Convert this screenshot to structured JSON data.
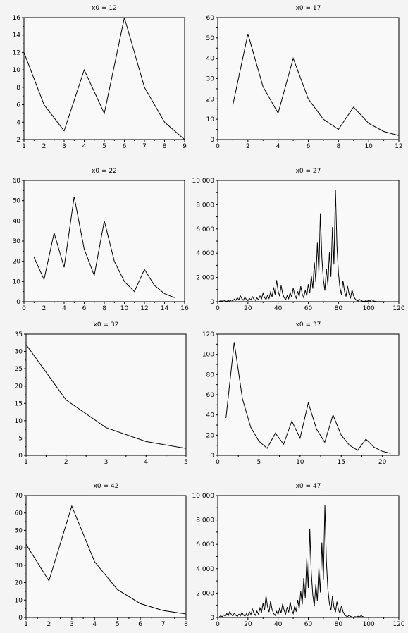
{
  "chart_data": [
    {
      "type": "line",
      "title": "x0 = 12",
      "xlim": [
        1,
        9
      ],
      "ylim": [
        2,
        16
      ],
      "xticks": [
        1,
        2,
        3,
        4,
        5,
        6,
        7,
        8,
        9
      ],
      "yticks": [
        2,
        4,
        6,
        8,
        10,
        12,
        14,
        16
      ],
      "x": [
        1,
        2,
        3,
        4,
        5,
        6,
        7,
        8,
        9
      ],
      "y": [
        12,
        6,
        3,
        10,
        5,
        16,
        8,
        4,
        2
      ]
    },
    {
      "type": "line",
      "title": "x0 = 17",
      "xlim": [
        0,
        12
      ],
      "ylim": [
        0,
        60
      ],
      "xticks": [
        0,
        2,
        4,
        6,
        8,
        10,
        12
      ],
      "yticks": [
        0,
        10,
        20,
        30,
        40,
        50,
        60
      ],
      "x": [
        1,
        2,
        3,
        4,
        5,
        6,
        7,
        8,
        9,
        10,
        11,
        12
      ],
      "y": [
        17,
        52,
        26,
        13,
        40,
        20,
        10,
        5,
        16,
        8,
        4,
        2
      ]
    },
    {
      "type": "line",
      "title": "x0 = 22",
      "xlim": [
        0,
        16
      ],
      "ylim": [
        0,
        60
      ],
      "xticks": [
        0,
        2,
        4,
        6,
        8,
        10,
        12,
        14,
        16
      ],
      "yticks": [
        0,
        10,
        20,
        30,
        40,
        50,
        60
      ],
      "x": [
        1,
        2,
        3,
        4,
        5,
        6,
        7,
        8,
        9,
        10,
        11,
        12,
        13,
        14,
        15
      ],
      "y": [
        22,
        11,
        34,
        17,
        52,
        26,
        13,
        40,
        20,
        10,
        5,
        16,
        8,
        4,
        2
      ]
    },
    {
      "type": "line",
      "title": "x0 = 27",
      "xlim": [
        0,
        120
      ],
      "ylim": [
        0,
        10000
      ],
      "xticks": [
        0,
        20,
        40,
        60,
        80,
        100,
        120
      ],
      "yticks": [
        0,
        2000,
        4000,
        6000,
        8000,
        10000
      ],
      "ytick_labels": [
        "0",
        "2 000",
        "4 000",
        "6 000",
        "8 000",
        "10 000"
      ],
      "x": [
        1,
        2,
        3,
        4,
        5,
        6,
        7,
        8,
        9,
        10,
        11,
        12,
        13,
        14,
        15,
        16,
        17,
        18,
        19,
        20,
        21,
        22,
        23,
        24,
        25,
        26,
        27,
        28,
        29,
        30,
        31,
        32,
        33,
        34,
        35,
        36,
        37,
        38,
        39,
        40,
        41,
        42,
        43,
        44,
        45,
        46,
        47,
        48,
        49,
        50,
        51,
        52,
        53,
        54,
        55,
        56,
        57,
        58,
        59,
        60,
        61,
        62,
        63,
        64,
        65,
        66,
        67,
        68,
        69,
        70,
        71,
        72,
        73,
        74,
        75,
        76,
        77,
        78,
        79,
        80,
        81,
        82,
        83,
        84,
        85,
        86,
        87,
        88,
        89,
        90,
        91,
        92,
        93,
        94,
        95,
        96,
        97,
        98,
        99,
        100,
        101,
        102,
        103,
        104,
        105,
        106,
        107,
        108,
        109,
        110,
        111,
        112
      ],
      "y": [
        27,
        82,
        41,
        124,
        62,
        31,
        94,
        47,
        142,
        71,
        214,
        107,
        322,
        161,
        484,
        242,
        121,
        364,
        182,
        91,
        274,
        137,
        412,
        206,
        103,
        310,
        155,
        466,
        233,
        700,
        350,
        175,
        526,
        263,
        790,
        395,
        1186,
        593,
        1780,
        890,
        445,
        1336,
        668,
        334,
        167,
        502,
        251,
        754,
        377,
        1132,
        566,
        283,
        850,
        425,
        1276,
        638,
        319,
        958,
        479,
        1438,
        719,
        2158,
        1079,
        3238,
        1619,
        4858,
        2429,
        7288,
        3644,
        1822,
        911,
        2734,
        1367,
        4102,
        2051,
        6154,
        3077,
        9232,
        4616,
        2308,
        1154,
        577,
        1732,
        866,
        433,
        1300,
        650,
        325,
        976,
        488,
        244,
        122,
        61,
        184,
        92,
        46,
        23,
        70,
        35,
        106,
        53,
        160,
        80,
        40,
        20,
        10,
        5,
        16,
        8,
        4,
        2,
        1
      ]
    },
    {
      "type": "line",
      "title": "x0 = 32",
      "xlim": [
        1,
        5
      ],
      "ylim": [
        0,
        35
      ],
      "xticks": [
        1,
        2,
        3,
        4,
        5
      ],
      "yticks": [
        0,
        5,
        10,
        15,
        20,
        25,
        30,
        35
      ],
      "x": [
        1,
        2,
        3,
        4,
        5
      ],
      "y": [
        32,
        16,
        8,
        4,
        2
      ]
    },
    {
      "type": "line",
      "title": "x0 = 37",
      "xlim": [
        0,
        22
      ],
      "ylim": [
        0,
        120
      ],
      "xticks": [
        0,
        5,
        10,
        15,
        20
      ],
      "yticks": [
        0,
        20,
        40,
        60,
        80,
        100,
        120
      ],
      "x": [
        1,
        2,
        3,
        4,
        5,
        6,
        7,
        8,
        9,
        10,
        11,
        12,
        13,
        14,
        15,
        16,
        17,
        18,
        19,
        20,
        21
      ],
      "y": [
        37,
        112,
        56,
        28,
        14,
        7,
        22,
        11,
        34,
        17,
        52,
        26,
        13,
        40,
        20,
        10,
        5,
        16,
        8,
        4,
        2
      ]
    },
    {
      "type": "line",
      "title": "x0 = 42",
      "xlim": [
        1,
        8
      ],
      "ylim": [
        0,
        70
      ],
      "xticks": [
        1,
        2,
        3,
        4,
        5,
        6,
        7,
        8
      ],
      "yticks": [
        0,
        10,
        20,
        30,
        40,
        50,
        60,
        70
      ],
      "x": [
        1,
        2,
        3,
        4,
        5,
        6,
        7,
        8
      ],
      "y": [
        42,
        21,
        64,
        32,
        16,
        8,
        4,
        2
      ]
    },
    {
      "type": "line",
      "title": "x0 = 47",
      "xlim": [
        0,
        120
      ],
      "ylim": [
        0,
        10000
      ],
      "xticks": [
        0,
        20,
        40,
        60,
        80,
        100,
        120
      ],
      "yticks": [
        0,
        2000,
        4000,
        6000,
        8000,
        10000
      ],
      "ytick_labels": [
        "0",
        "2 000",
        "4 000",
        "6 000",
        "8 000",
        "10 000"
      ],
      "x": [
        1,
        2,
        3,
        4,
        5,
        6,
        7,
        8,
        9,
        10,
        11,
        12,
        13,
        14,
        15,
        16,
        17,
        18,
        19,
        20,
        21,
        22,
        23,
        24,
        25,
        26,
        27,
        28,
        29,
        30,
        31,
        32,
        33,
        34,
        35,
        36,
        37,
        38,
        39,
        40,
        41,
        42,
        43,
        44,
        45,
        46,
        47,
        48,
        49,
        50,
        51,
        52,
        53,
        54,
        55,
        56,
        57,
        58,
        59,
        60,
        61,
        62,
        63,
        64,
        65,
        66,
        67,
        68,
        69,
        70,
        71,
        72,
        73,
        74,
        75,
        76,
        77,
        78,
        79,
        80,
        81,
        82,
        83,
        84,
        85,
        86,
        87,
        88,
        89,
        90,
        91,
        92,
        93,
        94,
        95,
        96,
        97,
        98,
        99,
        100,
        101,
        102,
        103,
        104,
        105
      ],
      "y": [
        47,
        142,
        71,
        214,
        107,
        322,
        161,
        484,
        242,
        121,
        364,
        182,
        91,
        274,
        137,
        412,
        206,
        103,
        310,
        155,
        466,
        233,
        700,
        350,
        175,
        526,
        263,
        790,
        395,
        1186,
        593,
        1780,
        890,
        445,
        1336,
        668,
        334,
        167,
        502,
        251,
        754,
        377,
        1132,
        566,
        283,
        850,
        425,
        1276,
        638,
        319,
        958,
        479,
        1438,
        719,
        2158,
        1079,
        3238,
        1619,
        4858,
        2429,
        7288,
        3644,
        1822,
        911,
        2734,
        1367,
        4102,
        2051,
        6154,
        3077,
        9232,
        4616,
        2308,
        1154,
        577,
        1732,
        866,
        433,
        1300,
        650,
        325,
        976,
        488,
        244,
        122,
        61,
        184,
        92,
        46,
        23,
        70,
        35,
        106,
        53,
        160,
        80,
        40,
        20,
        10,
        5,
        16,
        8,
        4,
        2,
        1
      ]
    }
  ]
}
